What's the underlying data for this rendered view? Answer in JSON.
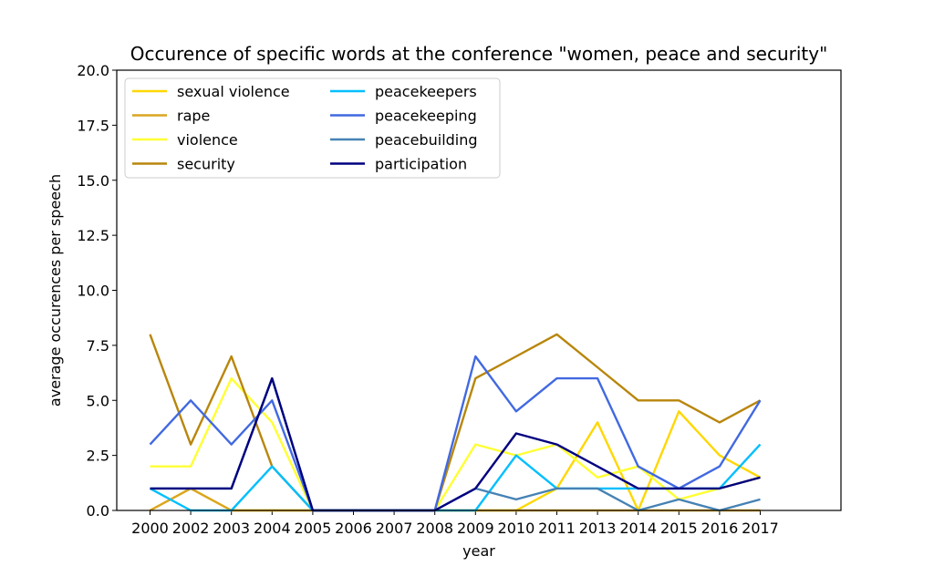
{
  "chart_data": {
    "type": "line",
    "title": "Occurence of specific words at the conference \"women, peace and security\"",
    "xlabel": "year",
    "ylabel": "average occurences per speech",
    "categories": [
      "2000",
      "2002",
      "2003",
      "2004",
      "2005",
      "2006",
      "2007",
      "2008",
      "2009",
      "2010",
      "2011",
      "2013",
      "2014",
      "2015",
      "2016",
      "2017"
    ],
    "ylim": [
      0,
      20
    ],
    "yticks": [
      "0.0",
      "2.5",
      "5.0",
      "7.5",
      "10.0",
      "12.5",
      "15.0",
      "17.5",
      "20.0"
    ],
    "grid": false,
    "legend_position": "top-left",
    "series": [
      {
        "name": "sexual violence",
        "color": "#FFD700",
        "values": [
          0,
          1,
          0,
          0,
          0,
          0,
          0,
          0,
          0,
          0,
          1,
          4,
          0,
          4.5,
          2.5,
          1.5
        ]
      },
      {
        "name": "rape",
        "color": "#DAA520",
        "values": [
          0,
          1,
          0,
          0,
          0,
          0,
          0,
          0,
          0,
          0,
          0,
          0,
          0,
          0,
          0,
          0
        ]
      },
      {
        "name": "violence",
        "color": "#FFFF33",
        "values": [
          2,
          2,
          6,
          4,
          0,
          0,
          0,
          0,
          3,
          2.5,
          3,
          1.5,
          2,
          0.5,
          1,
          1.5
        ]
      },
      {
        "name": "security",
        "color": "#B8860B",
        "values": [
          8,
          3,
          7,
          2,
          0,
          0,
          0,
          0,
          6,
          7,
          8,
          6.5,
          5,
          5,
          4,
          5
        ]
      },
      {
        "name": "peacekeepers",
        "color": "#00BFFF",
        "values": [
          1,
          0,
          0,
          2,
          0,
          0,
          0,
          0,
          0,
          2.5,
          1,
          1,
          1,
          1,
          1,
          3
        ]
      },
      {
        "name": "peacekeeping",
        "color": "#4169E1",
        "values": [
          3,
          5,
          3,
          5,
          0,
          0,
          0,
          0,
          7,
          4.5,
          6,
          6,
          2,
          1,
          2,
          5
        ]
      },
      {
        "name": "peacebuilding",
        "color": "#4682B4",
        "values": [
          1,
          1,
          1,
          6,
          0,
          0,
          0,
          0,
          1,
          0.5,
          1,
          1,
          0,
          0.5,
          0,
          0.5
        ]
      },
      {
        "name": "participation",
        "color": "#000080",
        "values": [
          1,
          1,
          1,
          6,
          0,
          0,
          0,
          0,
          1,
          3.5,
          3,
          2,
          1,
          1,
          1,
          1.5
        ]
      }
    ]
  }
}
